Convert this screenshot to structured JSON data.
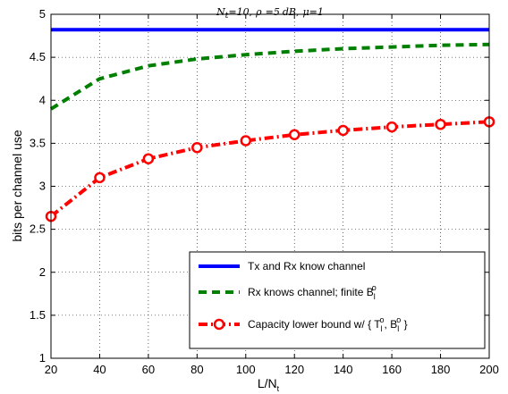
{
  "chart_data": {
    "type": "line",
    "title": "N_t = 10, ρ = 5 dB, μ = 1",
    "title_parts": {
      "n": "N",
      "n_sub": "t",
      "eq1": "=10,",
      "rho": "ρ",
      "eq2": "=5",
      "db": "dB,",
      "mu": "μ",
      "eq3": "=1"
    },
    "xlabel": "L/N_t",
    "xlabel_parts": {
      "main": "L/N",
      "sub": "t"
    },
    "ylabel": "bits per channel use",
    "xlim": [
      20,
      200
    ],
    "ylim": [
      1,
      5
    ],
    "xticks": [
      20,
      40,
      60,
      80,
      100,
      120,
      140,
      160,
      180,
      200
    ],
    "yticks": [
      1,
      1.5,
      2,
      2.5,
      3,
      3.5,
      4,
      4.5,
      5
    ],
    "xtick_labels": [
      "20",
      "40",
      "60",
      "80",
      "100",
      "120",
      "140",
      "160",
      "180",
      "200"
    ],
    "ytick_labels": [
      "1",
      "1.5",
      "2",
      "2.5",
      "3",
      "3.5",
      "4",
      "4.5",
      "5"
    ],
    "grid": true,
    "legend_position": "bottom-right",
    "x": [
      20,
      40,
      60,
      80,
      100,
      120,
      140,
      160,
      180,
      200
    ],
    "series": [
      {
        "name": "Tx and Rx know channel",
        "values": [
          4.82,
          4.82,
          4.82,
          4.82,
          4.82,
          4.82,
          4.82,
          4.82,
          4.82,
          4.82
        ],
        "color": "#0000ff",
        "style": "solid",
        "marker": "none"
      },
      {
        "name": "Rx knows channel; finite B_l^o",
        "values": [
          3.9,
          4.25,
          4.4,
          4.48,
          4.53,
          4.57,
          4.6,
          4.62,
          4.64,
          4.65
        ],
        "color": "#008000",
        "style": "dashed",
        "marker": "none"
      },
      {
        "name": "Capacity lower bound w/ { T_l^o, B_l^o }",
        "values": [
          2.65,
          3.1,
          3.32,
          3.45,
          3.53,
          3.6,
          3.65,
          3.69,
          3.72,
          3.75
        ],
        "color": "#ff0000",
        "style": "dashdot",
        "marker": "circle"
      }
    ],
    "legend_parts": {
      "s1": "Tx and Rx know channel",
      "s2_main": "Rx knows channel; finite B",
      "s2_sub": "l",
      "s2_sup": "o",
      "s3_a": "Capacity lower bound w/ { T",
      "s3_sub1": "l",
      "s3_sup1": "o",
      "s3_b": ", B",
      "s3_sub2": "l",
      "s3_sup2": "o",
      "s3_c": " }"
    }
  }
}
